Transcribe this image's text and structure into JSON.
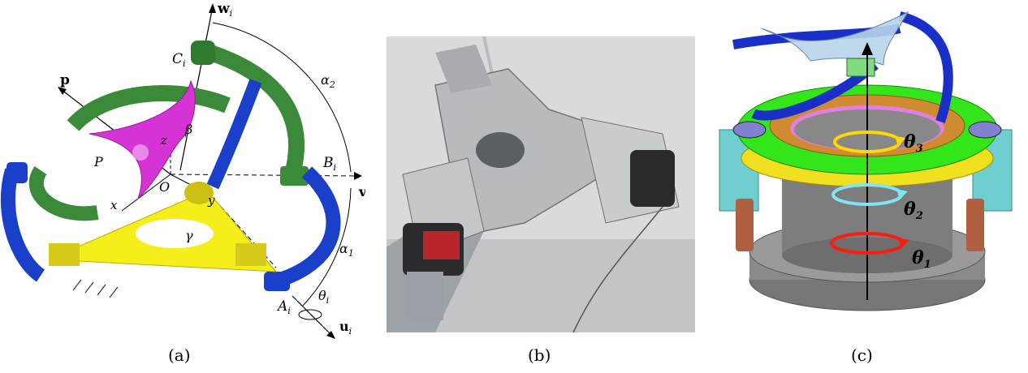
{
  "captions": {
    "a": "(a)",
    "b": "(b)",
    "c": "(c)"
  },
  "panel_a": {
    "labels": {
      "w": "w",
      "w_sub": "i",
      "C": "C",
      "C_sub": "i",
      "p": "p",
      "alpha2": "α",
      "alpha2_sub": "2",
      "beta": "β",
      "z": "z",
      "P": "P",
      "B": "B",
      "B_sub": "i",
      "v": "v",
      "v_sub": "i",
      "O": "O",
      "y": "y",
      "x": "x",
      "gamma": "γ",
      "alpha1": "α",
      "alpha1_sub": "1",
      "A": "A",
      "A_sub": "i",
      "theta": "θ",
      "theta_sub": "i",
      "u": "u",
      "u_sub": "i"
    },
    "colors": {
      "green": "#3a8a3a",
      "blue": "#1a3fc8",
      "magenta": "#d633d6",
      "yellow": "#f5ee1a"
    }
  },
  "panel_b": {
    "icon": "robot-photo-icon"
  },
  "panel_c": {
    "labels": {
      "theta3": "θ",
      "theta3_sub": "3",
      "theta2": "θ",
      "theta2_sub": "2",
      "theta1": "θ",
      "theta1_sub": "1"
    },
    "colors": {
      "ring_green": "#33e61a",
      "gear_yellow": "#f0e020",
      "ring_orange": "#d08a30",
      "arc_blue": "#1a2fc8",
      "arrow_yellow": "#ffd800",
      "arrow_cyan": "#7fe5f5",
      "arrow_red": "#ff1a10"
    }
  }
}
